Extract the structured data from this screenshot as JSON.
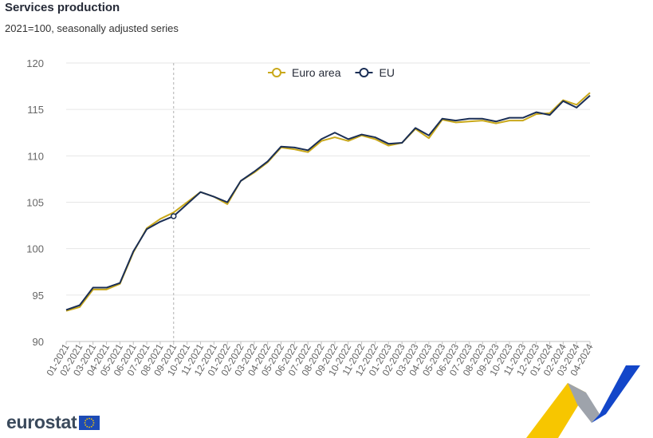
{
  "header": {
    "title": "Services production",
    "subtitle": "2021=100, seasonally adjusted series"
  },
  "brand": {
    "logo_text": "eurostat"
  },
  "colors": {
    "euro_area": "#c9a81a",
    "eu": "#1a2e55",
    "grid": "#e6e6e6",
    "axis_text": "#666666",
    "deco_yellow": "#f7c600",
    "deco_blue": "#1346c9",
    "deco_grey": "#9ea3ab"
  },
  "chart_data": {
    "type": "line",
    "title": "Services production",
    "subtitle": "2021=100, seasonally adjusted series",
    "xlabel": "",
    "ylabel": "",
    "ylim": [
      90,
      120
    ],
    "yticks": [
      90,
      95,
      100,
      105,
      110,
      115,
      120
    ],
    "grid": true,
    "legend_position": "top-center",
    "highlight": {
      "category": "09-2021",
      "series": "EU",
      "value": 103.5
    },
    "categories": [
      "01-2021",
      "02-2021",
      "03-2021",
      "04-2021",
      "05-2021",
      "06-2021",
      "07-2021",
      "08-2021",
      "09-2021",
      "10-2021",
      "11-2021",
      "12-2021",
      "01-2022",
      "02-2022",
      "03-2022",
      "04-2022",
      "05-2022",
      "06-2022",
      "07-2022",
      "08-2022",
      "09-2022",
      "10-2022",
      "11-2022",
      "12-2022",
      "01-2023",
      "02-2023",
      "03-2023",
      "04-2023",
      "05-2023",
      "06-2023",
      "07-2023",
      "08-2023",
      "09-2023",
      "10-2023",
      "11-2023",
      "12-2023",
      "01-2024",
      "02-2024",
      "03-2024",
      "04-2024"
    ],
    "series": [
      {
        "name": "Euro area",
        "color": "#c9a81a",
        "values": [
          93.3,
          93.7,
          95.6,
          95.6,
          96.2,
          99.6,
          102.2,
          103.2,
          103.9,
          105.0,
          106.1,
          105.6,
          104.8,
          107.3,
          108.2,
          109.3,
          110.9,
          110.7,
          110.4,
          111.6,
          112.0,
          111.6,
          112.2,
          111.8,
          111.1,
          111.4,
          112.9,
          111.9,
          113.9,
          113.6,
          113.7,
          113.8,
          113.5,
          113.8,
          113.8,
          114.5,
          114.6,
          116.0,
          115.5,
          116.8
        ]
      },
      {
        "name": "EU",
        "color": "#1a2e55",
        "values": [
          93.4,
          93.9,
          95.8,
          95.8,
          96.3,
          99.7,
          102.1,
          102.9,
          103.5,
          104.8,
          106.1,
          105.6,
          105.0,
          107.3,
          108.3,
          109.4,
          111.0,
          110.9,
          110.6,
          111.8,
          112.5,
          111.8,
          112.3,
          112.0,
          111.3,
          111.4,
          113.0,
          112.2,
          114.0,
          113.8,
          114.0,
          114.0,
          113.7,
          114.1,
          114.1,
          114.7,
          114.4,
          115.9,
          115.2,
          116.5
        ]
      }
    ]
  }
}
